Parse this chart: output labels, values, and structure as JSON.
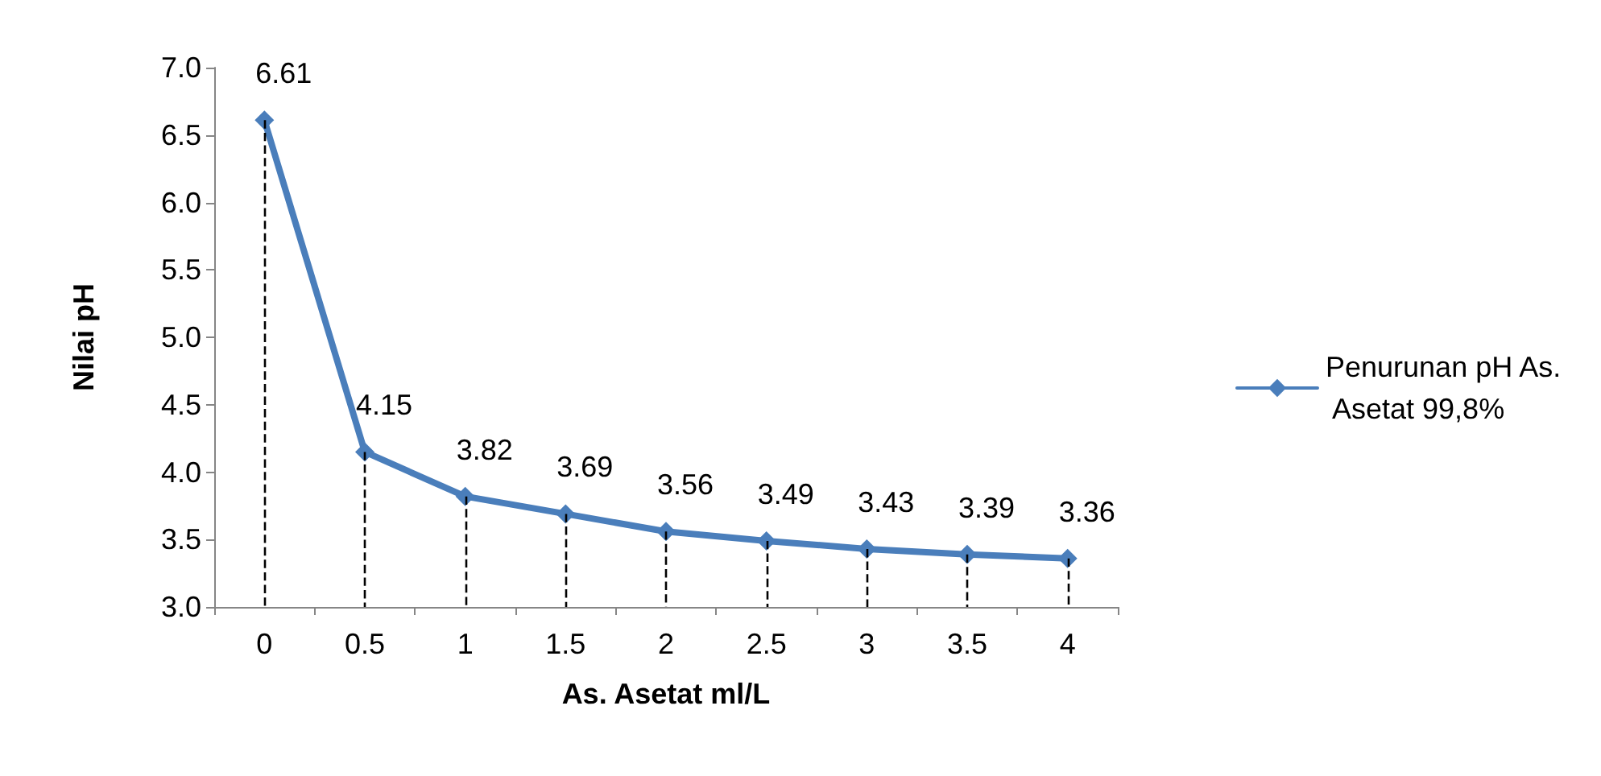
{
  "chart_data": {
    "type": "line",
    "xlabel": "As. Asetat ml/L",
    "ylabel": "Nilai pH",
    "categories": [
      "0",
      "0.5",
      "1",
      "1.5",
      "2",
      "2.5",
      "3",
      "3.5",
      "4"
    ],
    "series": [
      {
        "name": "Penurunan pH As. Asetat 99,8%",
        "color": "#4a7ebb",
        "values": [
          6.61,
          4.15,
          3.82,
          3.69,
          3.56,
          3.49,
          3.43,
          3.39,
          3.36
        ]
      }
    ],
    "ylim": [
      3,
      7
    ],
    "yticks": [
      {
        "value": 3,
        "label": "3.0"
      },
      {
        "value": 3.5,
        "label": "3.5"
      },
      {
        "value": 4,
        "label": "4.0"
      },
      {
        "value": 4.5,
        "label": "4.5"
      },
      {
        "value": 5,
        "label": "5.0"
      },
      {
        "value": 5.5,
        "label": "5.5"
      },
      {
        "value": 6,
        "label": "6.0"
      },
      {
        "value": 6.5,
        "label": "6.5"
      },
      {
        "value": 7,
        "label": "7.0"
      }
    ],
    "grid": "x",
    "legend": "right",
    "marker": "diamond",
    "line_style": "solid",
    "data_labels": true
  }
}
